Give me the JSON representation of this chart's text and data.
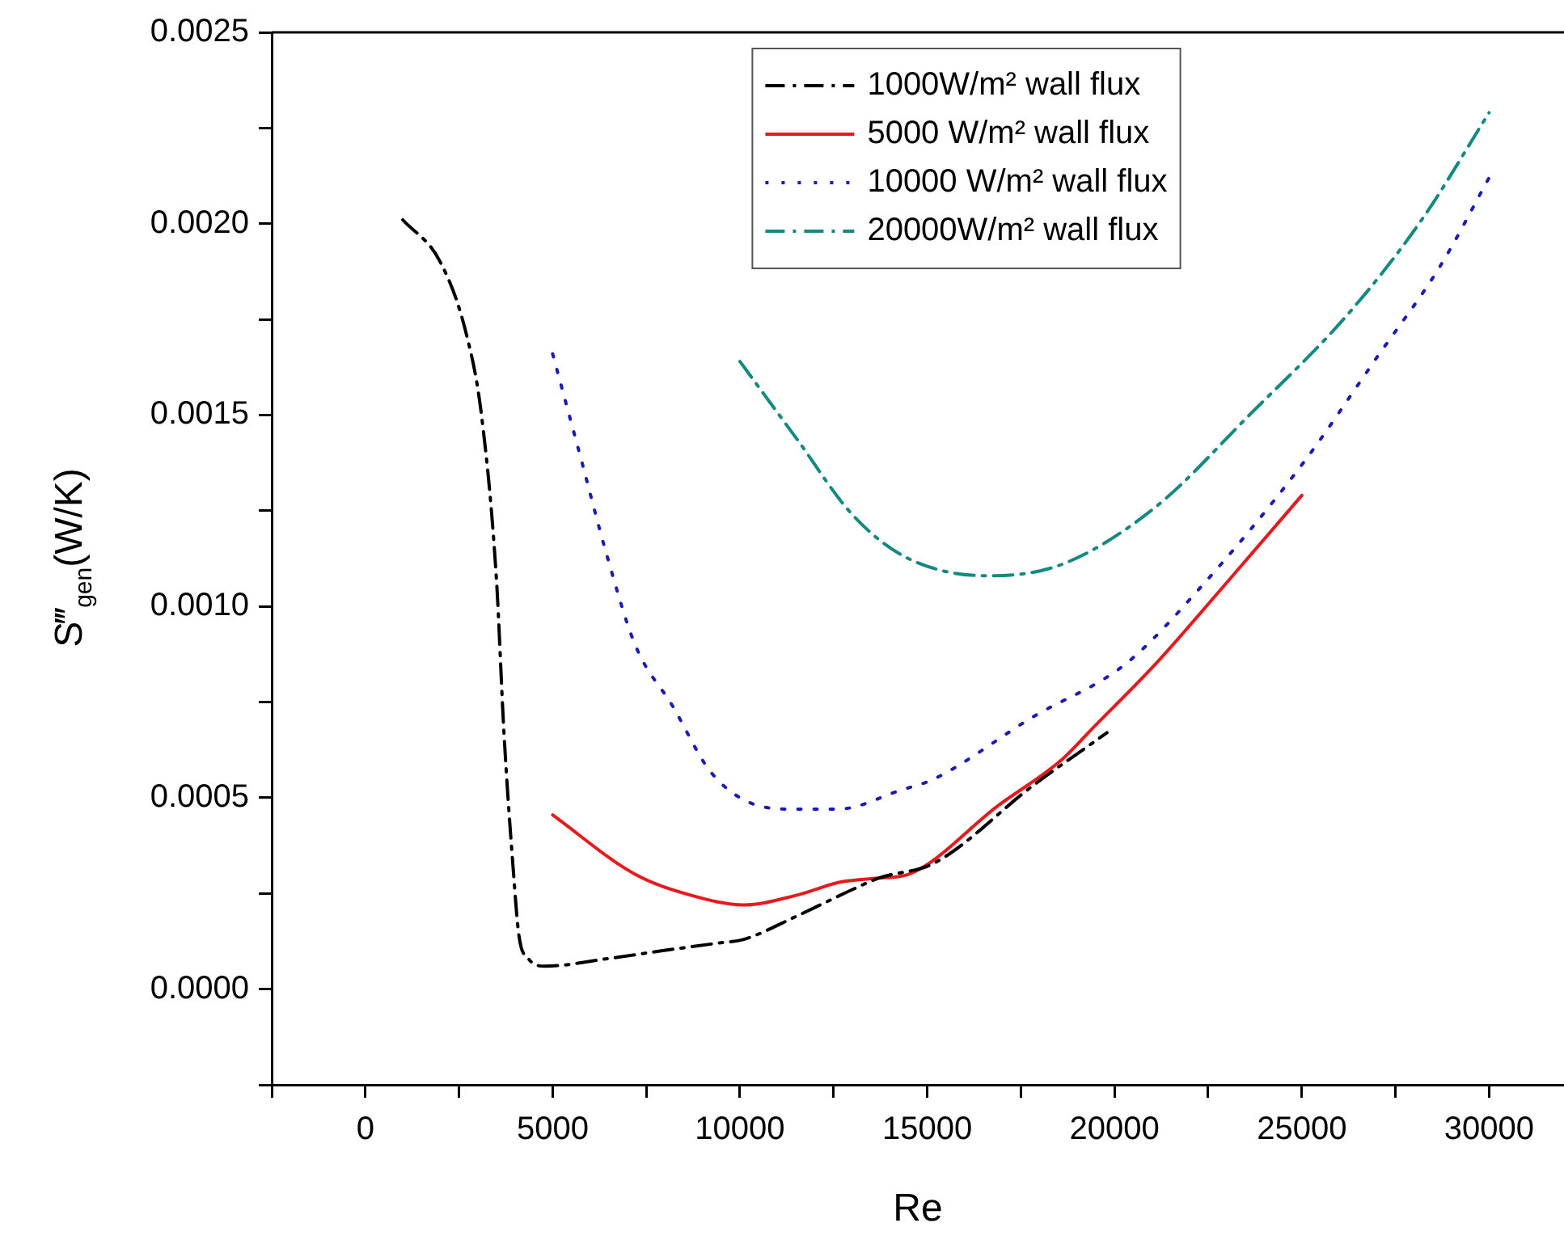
{
  "chart_data": {
    "type": "line",
    "xlabel": "Re",
    "ylabel": "S‴$_{gen}$(W/K)",
    "xlim": [
      -2500,
      32000
    ],
    "xticks": [
      {
        "value": -2500,
        "label": null
      },
      0,
      {
        "value": 2500,
        "label": null
      },
      5000,
      {
        "value": 7500,
        "label": null
      },
      10000,
      {
        "value": 12500,
        "label": null
      },
      15000,
      {
        "value": 17500,
        "label": null
      },
      20000,
      {
        "value": 22500,
        "label": null
      },
      25000,
      {
        "value": 27500,
        "label": null
      },
      30000
    ],
    "ylim": [
      -0.00025,
      0.0025
    ],
    "yticks": [
      {
        "value": -0.00025,
        "label": null
      },
      {
        "value": 0,
        "label": "0.0000"
      },
      {
        "value": 0.00025,
        "label": null
      },
      {
        "value": 0.0005,
        "label": "0.0005"
      },
      {
        "value": 0.00075,
        "label": null
      },
      {
        "value": 0.001,
        "label": "0.0010"
      },
      {
        "value": 0.00125,
        "label": null
      },
      {
        "value": 0.0015,
        "label": "0.0015"
      },
      {
        "value": 0.00175,
        "label": null
      },
      {
        "value": 0.002,
        "label": "0.0020"
      },
      {
        "value": 0.00225,
        "label": null
      },
      {
        "value": 0.0025,
        "label": "0.0025"
      }
    ],
    "grid": false,
    "legend": "top",
    "marker": "none",
    "series": [
      {
        "name": "1000W/m² wall flux",
        "color": "#000000",
        "line_style": "dashed",
        "x": [
          1000,
          2000,
          2700,
          3100,
          3500,
          3700,
          3950,
          4100,
          4350,
          4800,
          6500,
          7900,
          9400,
          10100,
          11500,
          13000,
          13700,
          15200,
          17800,
          19800
        ],
        "values": [
          0.00201,
          0.0019,
          0.00171,
          0.0015,
          0.00107,
          0.00067,
          0.00031,
          0.00014,
          8e-05,
          6e-05,
          8e-05,
          0.0001,
          0.00012,
          0.00013,
          0.00019,
          0.00026,
          0.00029,
          0.00033,
          0.00053,
          0.00067
        ]
      },
      {
        "name": "5000 W/m² wall flux",
        "color": "#e8191c",
        "line_style": "solid",
        "x": [
          5000,
          7200,
          8700,
          10100,
          11500,
          12700,
          13700,
          14500,
          16900,
          18600,
          19400,
          21100,
          22800,
          25000
        ],
        "values": [
          0.000455,
          0.0003,
          0.000245,
          0.00022,
          0.000245,
          0.00028,
          0.00029,
          0.0003,
          0.00048,
          0.0006,
          0.00068,
          0.00085,
          0.00104,
          0.00129
        ]
      },
      {
        "name": "10000 W/m² wall flux",
        "color": "#1a1ab8",
        "line_style": "dotted",
        "x": [
          5000,
          5800,
          6400,
          7200,
          8200,
          9200,
          10200,
          11500,
          12600,
          14300,
          15200,
          17800,
          20300,
          22300,
          25000,
          27000,
          28700,
          30000
        ],
        "values": [
          0.00166,
          0.00137,
          0.00115,
          0.0009,
          0.00074,
          0.00057,
          0.00049,
          0.00047,
          0.00047,
          0.00052,
          0.00055,
          0.00071,
          0.00085,
          0.00105,
          0.00137,
          0.00165,
          0.00189,
          0.00212
        ]
      },
      {
        "name": "20000W/m² wall flux",
        "color": "#138a80",
        "line_style": "dashed",
        "x": [
          10000,
          11500,
          13000,
          14400,
          16600,
          18600,
          21100,
          23600,
          26200,
          28200,
          30000
        ],
        "values": [
          0.00164,
          0.00144,
          0.00124,
          0.00113,
          0.00108,
          0.00111,
          0.00126,
          0.0015,
          0.00176,
          0.00201,
          0.00229
        ]
      }
    ]
  }
}
